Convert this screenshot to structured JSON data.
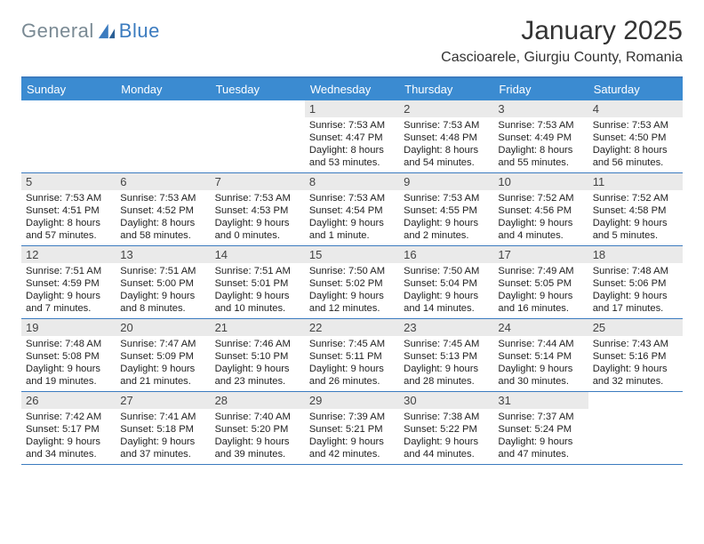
{
  "brand": {
    "text1": "General",
    "text2": "Blue"
  },
  "title": "January 2025",
  "location": "Cascioarele, Giurgiu County, Romania",
  "dayNames": [
    "Sunday",
    "Monday",
    "Tuesday",
    "Wednesday",
    "Thursday",
    "Friday",
    "Saturday"
  ],
  "colors": {
    "accent": "#3b7bbf",
    "headerBg": "#3b8bd1",
    "dayBg": "#eaeaea"
  },
  "weeks": [
    [
      {
        "n": "",
        "sr": "",
        "ss": "",
        "dl": ""
      },
      {
        "n": "",
        "sr": "",
        "ss": "",
        "dl": ""
      },
      {
        "n": "",
        "sr": "",
        "ss": "",
        "dl": ""
      },
      {
        "n": "1",
        "sr": "7:53 AM",
        "ss": "4:47 PM",
        "dl": "8 hours and 53 minutes."
      },
      {
        "n": "2",
        "sr": "7:53 AM",
        "ss": "4:48 PM",
        "dl": "8 hours and 54 minutes."
      },
      {
        "n": "3",
        "sr": "7:53 AM",
        "ss": "4:49 PM",
        "dl": "8 hours and 55 minutes."
      },
      {
        "n": "4",
        "sr": "7:53 AM",
        "ss": "4:50 PM",
        "dl": "8 hours and 56 minutes."
      }
    ],
    [
      {
        "n": "5",
        "sr": "7:53 AM",
        "ss": "4:51 PM",
        "dl": "8 hours and 57 minutes."
      },
      {
        "n": "6",
        "sr": "7:53 AM",
        "ss": "4:52 PM",
        "dl": "8 hours and 58 minutes."
      },
      {
        "n": "7",
        "sr": "7:53 AM",
        "ss": "4:53 PM",
        "dl": "9 hours and 0 minutes."
      },
      {
        "n": "8",
        "sr": "7:53 AM",
        "ss": "4:54 PM",
        "dl": "9 hours and 1 minute."
      },
      {
        "n": "9",
        "sr": "7:53 AM",
        "ss": "4:55 PM",
        "dl": "9 hours and 2 minutes."
      },
      {
        "n": "10",
        "sr": "7:52 AM",
        "ss": "4:56 PM",
        "dl": "9 hours and 4 minutes."
      },
      {
        "n": "11",
        "sr": "7:52 AM",
        "ss": "4:58 PM",
        "dl": "9 hours and 5 minutes."
      }
    ],
    [
      {
        "n": "12",
        "sr": "7:51 AM",
        "ss": "4:59 PM",
        "dl": "9 hours and 7 minutes."
      },
      {
        "n": "13",
        "sr": "7:51 AM",
        "ss": "5:00 PM",
        "dl": "9 hours and 8 minutes."
      },
      {
        "n": "14",
        "sr": "7:51 AM",
        "ss": "5:01 PM",
        "dl": "9 hours and 10 minutes."
      },
      {
        "n": "15",
        "sr": "7:50 AM",
        "ss": "5:02 PM",
        "dl": "9 hours and 12 minutes."
      },
      {
        "n": "16",
        "sr": "7:50 AM",
        "ss": "5:04 PM",
        "dl": "9 hours and 14 minutes."
      },
      {
        "n": "17",
        "sr": "7:49 AM",
        "ss": "5:05 PM",
        "dl": "9 hours and 16 minutes."
      },
      {
        "n": "18",
        "sr": "7:48 AM",
        "ss": "5:06 PM",
        "dl": "9 hours and 17 minutes."
      }
    ],
    [
      {
        "n": "19",
        "sr": "7:48 AM",
        "ss": "5:08 PM",
        "dl": "9 hours and 19 minutes."
      },
      {
        "n": "20",
        "sr": "7:47 AM",
        "ss": "5:09 PM",
        "dl": "9 hours and 21 minutes."
      },
      {
        "n": "21",
        "sr": "7:46 AM",
        "ss": "5:10 PM",
        "dl": "9 hours and 23 minutes."
      },
      {
        "n": "22",
        "sr": "7:45 AM",
        "ss": "5:11 PM",
        "dl": "9 hours and 26 minutes."
      },
      {
        "n": "23",
        "sr": "7:45 AM",
        "ss": "5:13 PM",
        "dl": "9 hours and 28 minutes."
      },
      {
        "n": "24",
        "sr": "7:44 AM",
        "ss": "5:14 PM",
        "dl": "9 hours and 30 minutes."
      },
      {
        "n": "25",
        "sr": "7:43 AM",
        "ss": "5:16 PM",
        "dl": "9 hours and 32 minutes."
      }
    ],
    [
      {
        "n": "26",
        "sr": "7:42 AM",
        "ss": "5:17 PM",
        "dl": "9 hours and 34 minutes."
      },
      {
        "n": "27",
        "sr": "7:41 AM",
        "ss": "5:18 PM",
        "dl": "9 hours and 37 minutes."
      },
      {
        "n": "28",
        "sr": "7:40 AM",
        "ss": "5:20 PM",
        "dl": "9 hours and 39 minutes."
      },
      {
        "n": "29",
        "sr": "7:39 AM",
        "ss": "5:21 PM",
        "dl": "9 hours and 42 minutes."
      },
      {
        "n": "30",
        "sr": "7:38 AM",
        "ss": "5:22 PM",
        "dl": "9 hours and 44 minutes."
      },
      {
        "n": "31",
        "sr": "7:37 AM",
        "ss": "5:24 PM",
        "dl": "9 hours and 47 minutes."
      },
      {
        "n": "",
        "sr": "",
        "ss": "",
        "dl": ""
      }
    ]
  ],
  "labels": {
    "sunrise": "Sunrise:",
    "sunset": "Sunset:",
    "daylight": "Daylight:"
  }
}
